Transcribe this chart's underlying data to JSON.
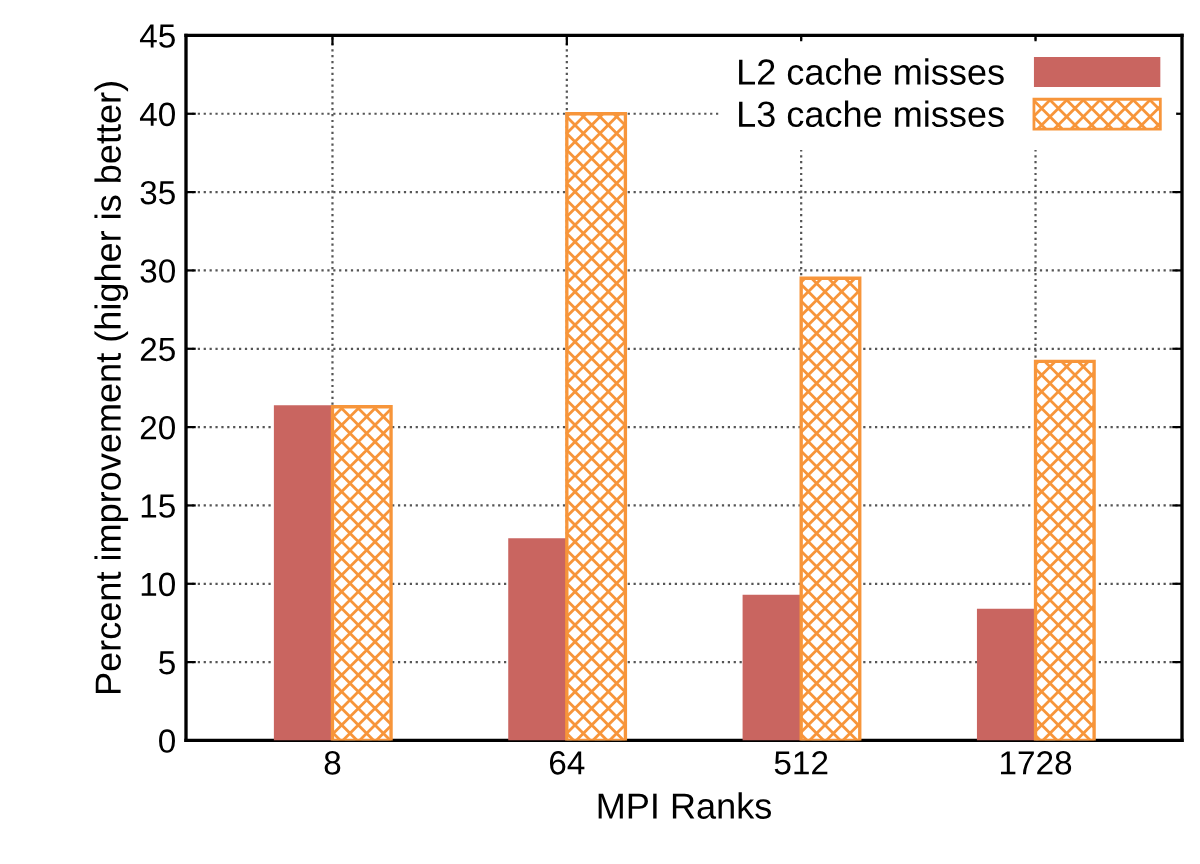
{
  "chart_data": {
    "type": "bar",
    "xlabel": "MPI Ranks",
    "ylabel": "Percent improvement (higher is better)",
    "categories": [
      "8",
      "64",
      "512",
      "1728"
    ],
    "series": [
      {
        "name": "L2 cache misses",
        "color": "#c96560",
        "values": [
          21.4,
          12.9,
          9.3,
          8.4
        ]
      },
      {
        "name": "L3 cache misses",
        "color": "#f7953a",
        "values": [
          21.3,
          40.0,
          29.5,
          24.2
        ]
      }
    ],
    "ylim": [
      0,
      45
    ],
    "yticks": [
      0,
      5,
      10,
      15,
      20,
      25,
      30,
      35,
      40,
      45
    ],
    "grid": true,
    "legend": "top right"
  }
}
